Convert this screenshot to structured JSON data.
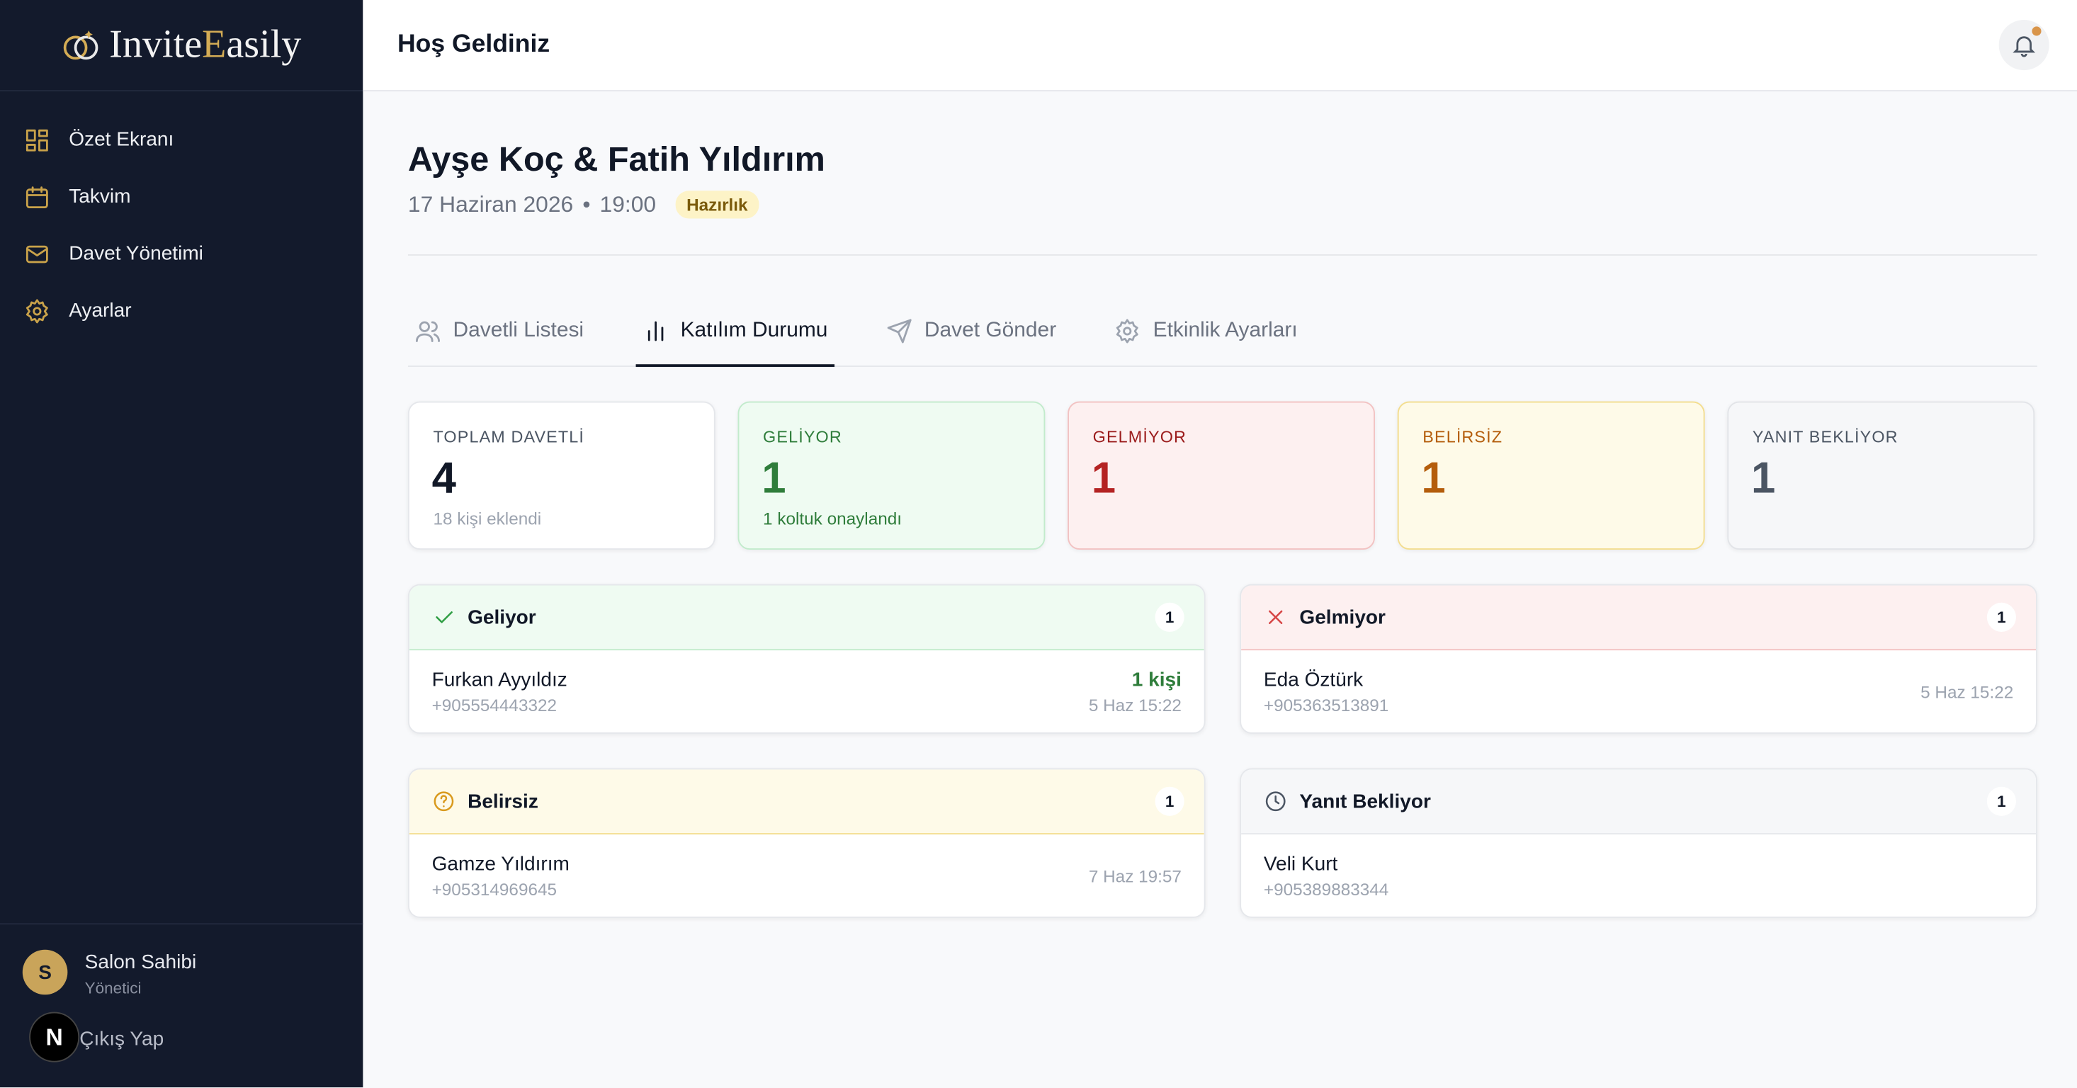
{
  "sidebar": {
    "brand": {
      "first": "Invite",
      "accent": "E",
      "rest": "asily"
    },
    "nav": [
      "Özet Ekranı",
      "Takvim",
      "Davet Yönetimi",
      "Ayarlar"
    ],
    "user": {
      "initial": "S",
      "name": "Salon Sahibi",
      "role": "Yönetici"
    },
    "badge": "N",
    "logout": "Çıkış Yap"
  },
  "header": {
    "title": "Hoş Geldiniz"
  },
  "event": {
    "title": "Ayşe Koç & Fatih Yıldırım",
    "date": "17 Haziran 2026",
    "separator": "•",
    "time": "19:00",
    "status": "Hazırlık"
  },
  "tabs": {
    "items": [
      "Davetli Listesi",
      "Katılım Durumu",
      "Davet Gönder",
      "Etkinlik Ayarları"
    ],
    "active": 1
  },
  "stats": [
    {
      "label": "TOPLAM DAVETLİ",
      "value": 4,
      "note": "18 kişi eklendi"
    },
    {
      "label": "GELİYOR",
      "value": 1,
      "note": "1 koltuk onaylandı"
    },
    {
      "label": "GELMİYOR",
      "value": 1
    },
    {
      "label": "BELİRSİZ",
      "value": 1
    },
    {
      "label": "YANIT BEKLİYOR",
      "value": 1
    }
  ],
  "groups": [
    {
      "title": "Geliyor",
      "count": 1,
      "guests": [
        {
          "name": "Furkan Ayyıldız",
          "phone": "+905554443322",
          "seats": "1 kişi",
          "time": "5 Haz 15:22"
        }
      ]
    },
    {
      "title": "Gelmiyor",
      "count": 1,
      "guests": [
        {
          "name": "Eda Öztürk",
          "phone": "+905363513891",
          "time": "5 Haz 15:22"
        }
      ]
    },
    {
      "title": "Belirsiz",
      "count": 1,
      "guests": [
        {
          "name": "Gamze Yıldırım",
          "phone": "+905314969645",
          "time": "7 Haz 19:57"
        }
      ]
    },
    {
      "title": "Yanıt Bekliyor",
      "count": 1,
      "guests": [
        {
          "name": "Veli Kurt",
          "phone": "+905389883344"
        }
      ]
    }
  ]
}
